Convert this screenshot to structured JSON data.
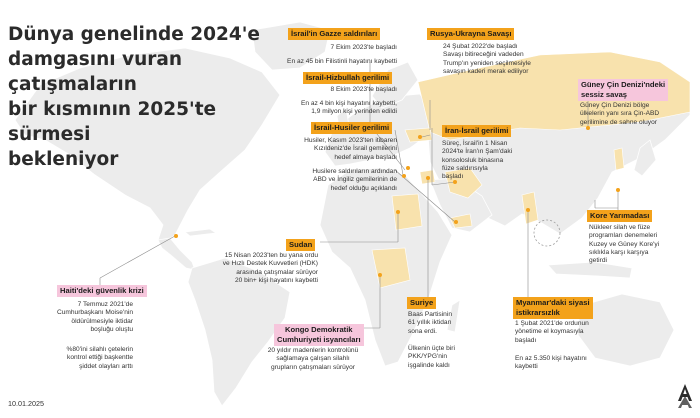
{
  "title": "Dünya genelinde 2024'e\ndamgasını vuran çatışmaların\nbir kısmının 2025'te sürmesi\nbekleniyor",
  "date": "10.01.2025",
  "colors": {
    "ocean": "#ffffff",
    "land": "#ececec",
    "highlight": "#f8e2ad",
    "label_orange": "#f3a21b",
    "label_pink": "#f6c6dc",
    "marker": "#f3a21b"
  },
  "logo": {
    "icon": "aa-logo-icon"
  },
  "conflicts": {
    "gazze": {
      "label": "İsrail'in Gazze saldırıları",
      "l1": "7 Ekim 2023'te başladı",
      "l2": "En az 45 bin Filistinli hayatını kaybetti"
    },
    "hizbullah": {
      "label": "İsrail-Hizbullah gerilimi",
      "l1": "8 Ekim 2023'te başladı",
      "l2": "En az 4 bin kişi hayatını kaybetti,\n1,9 milyon kişi yerinden edildi"
    },
    "husiler": {
      "label": "İsrail-Husiler gerilimi",
      "l1": "Husiler, Kasım 2023'ten itibaren\nKızıldeniz'de İsrail gemilerini\nhedef almaya başladı",
      "l2": "Husilere saldırıların ardından\nABD ve İngiliz gemilerinin de\nhedef olduğu açıklandı"
    },
    "rusya": {
      "label": "Rusya-Ukrayna Savaşı",
      "l1": "24 Şubat 2022'de başladı\nSavaşı bitireceğini vadeden\nTrump'ın yeniden seçilmesiyle\nsavaşın kaderi merak ediliyor"
    },
    "iran": {
      "label": "İran-İsrail gerilimi",
      "l1": "Süreç, İsrail'in 1 Nisan\n2024'te İran'ın Şam'daki\nkonsolosluk binasına\nfüze saldırısıyla\nbaşladı"
    },
    "guneycin": {
      "label": "Güney Çin Denizi'ndeki\nsessiz savaş",
      "l1": "Güney Çin Denizi bölge\nülkelerin yanı sıra Çin-ABD\ngerilimine de sahne oluyor"
    },
    "kore": {
      "label": "Kore Yarımadası",
      "l1": "Nükleer silah ve füze\nprogramları denemeleri\nKuzey ve Güney Kore'yi\nsıklıkla karşı karşıya\ngetirdi"
    },
    "sudan": {
      "label": "Sudan",
      "l1": "15 Nisan 2023'ten bu yana ordu\nve Hızlı Destek Kuvvetleri (HDK)\narasında çatışmalar sürüyor\n20 bin+ kişi hayatını kaybetti"
    },
    "haiti": {
      "label": "Haiti'deki güvenlik krizi",
      "l1": "7 Temmuz 2021'de\nCumhurbaşkanı Moise'nin\nöldürülmesiyle iktidar\nboşluğu oluştu",
      "l2": "%80'ini silahlı çetelerin\nkontrol ettiği başkentte\nşiddet olayları arttı"
    },
    "kongo": {
      "label": "Kongo Demokratik\nCumhuriyeti isyancıları",
      "l1": "20 yıldır madenlerin kontrolünü\nsağlamaya çalışan silahlı\ngrupların çatışmaları sürüyor"
    },
    "suriye": {
      "label": "Suriye",
      "l1": "Baas Partisinin\n61 yıllık iktidarı\nsona erdi.",
      "l2": "Ülkenin üçte biri\nPKK/YPG'nin\nişgalinde kaldı"
    },
    "myanmar": {
      "label": "Myanmar'daki siyasi\nistikrarsızlık",
      "l1": "1 Şubat 2021'de ordunun\nyönetime el koymasıyla\nbaşladı",
      "l2": "En az 5.350 kişi hayatını\nkaybetti"
    }
  }
}
